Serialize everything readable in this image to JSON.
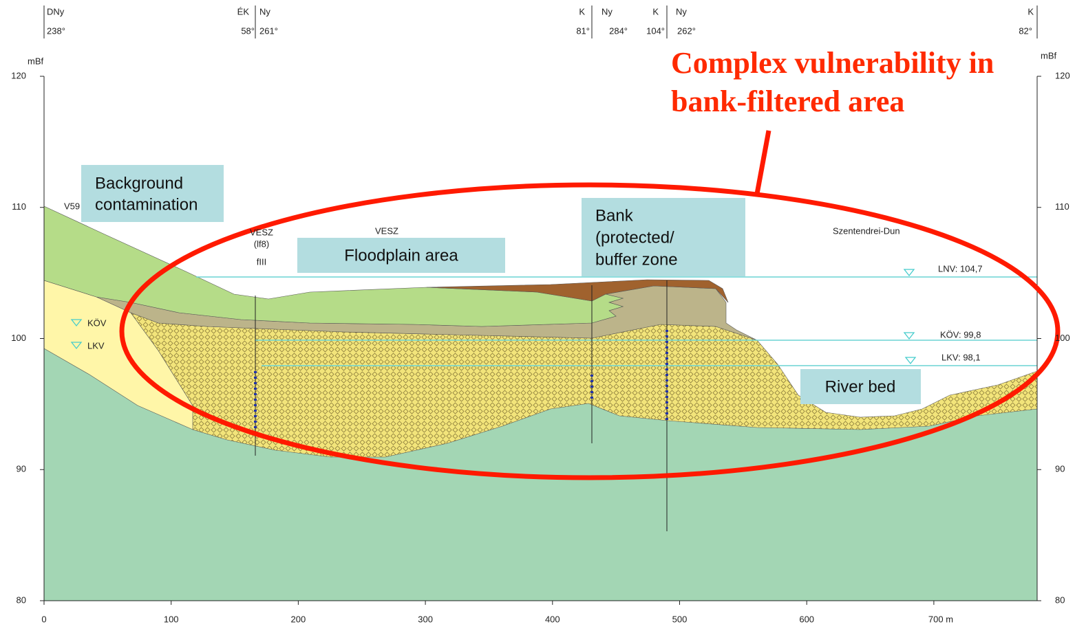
{
  "header": {
    "labels": [
      "DNy",
      "238°",
      "ÉK",
      "58°",
      "Ny",
      "261°",
      "K",
      "81°",
      "Ny",
      "284°",
      "K",
      "104°",
      "Ny",
      "262°",
      "K",
      "82°"
    ]
  },
  "left_axis": {
    "unit": "mBf",
    "ticks": [
      120,
      110,
      100,
      90,
      80
    ]
  },
  "right_axis": {
    "unit": "mBf",
    "ticks": [
      120,
      110,
      100,
      90,
      80
    ]
  },
  "x_axis": {
    "ticks": [
      0,
      100,
      200,
      300,
      400,
      500,
      600,
      "700 m"
    ]
  },
  "title": {
    "lines": [
      "Complex vulnerability in",
      "bank-filtered area"
    ]
  },
  "boxes": {
    "background": [
      "Background",
      "contamination"
    ],
    "floodplain": [
      "Floodplain area"
    ],
    "bank": [
      "Bank",
      "(protected/",
      "buffer zone"
    ],
    "river_bed": [
      "River bed"
    ]
  },
  "map_labels": [
    "V59",
    "VESZ",
    "(lf8)",
    "fIII",
    "VESZ",
    "Szentendrei-Dun"
  ],
  "water_levels": {
    "left": [
      "KÖV",
      "LKV"
    ],
    "right": [
      "LNV: 104,7",
      "KÖV: 99,8",
      "LKV: 98,1"
    ]
  }
}
